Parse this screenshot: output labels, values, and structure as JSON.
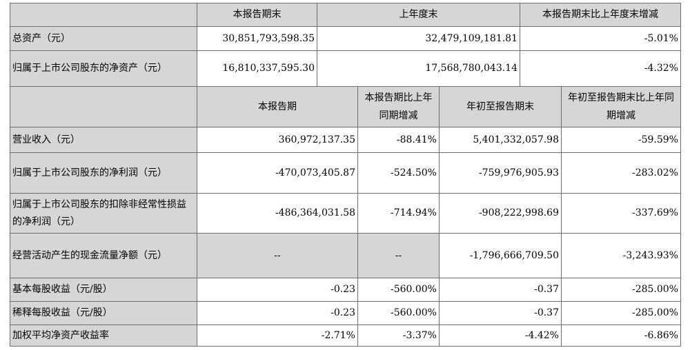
{
  "top": {
    "headers": [
      "本报告期末",
      "上年度末",
      "本报告期末比上年度末增减"
    ],
    "rows": [
      {
        "label": "总资产（元）",
        "values": [
          "30,851,793,598.35",
          "32,479,109,181.81",
          "-5.01%"
        ]
      },
      {
        "label": "归属于上市公司股东的净资产（元）",
        "values": [
          "16,810,337,595.30",
          "17,568,780,043.14",
          "-4.32%"
        ]
      }
    ]
  },
  "bottom": {
    "headers": [
      "本报告期",
      "本报告期比上年同期增减",
      "年初至报告期末",
      "年初至报告期末比上年同期增减"
    ],
    "rows": [
      {
        "label": "营业收入（元）",
        "values": [
          "360,972,137.35",
          "-88.41%",
          "5,401,332,057.98",
          "-59.59%"
        ]
      },
      {
        "label": "归属于上市公司股东的净利润（元）",
        "values": [
          "-470,073,405.87",
          "-524.50%",
          "-759,976,905.93",
          "-283.02%"
        ]
      },
      {
        "label": "归属于上市公司股东的扣除非经常性损益的净利润（元）",
        "values": [
          "-486,364,031.58",
          "-714.94%",
          "-908,222,998.69",
          "-337.69%"
        ]
      },
      {
        "label": "经营活动产生的现金流量净额（元）",
        "values": [
          "--",
          "--",
          "-1,796,666,709.50",
          "-3,243.93%"
        ]
      },
      {
        "label": "基本每股收益（元/股）",
        "values": [
          "-0.23",
          "-560.00%",
          "-0.37",
          "-285.00%"
        ]
      },
      {
        "label": "稀释每股收益（元/股）",
        "values": [
          "-0.23",
          "-560.00%",
          "-0.37",
          "-285.00%"
        ]
      },
      {
        "label": "加权平均净资产收益率",
        "values": [
          "-2.71%",
          "-3.37%",
          "-4.42%",
          "-6.86%"
        ]
      }
    ]
  }
}
